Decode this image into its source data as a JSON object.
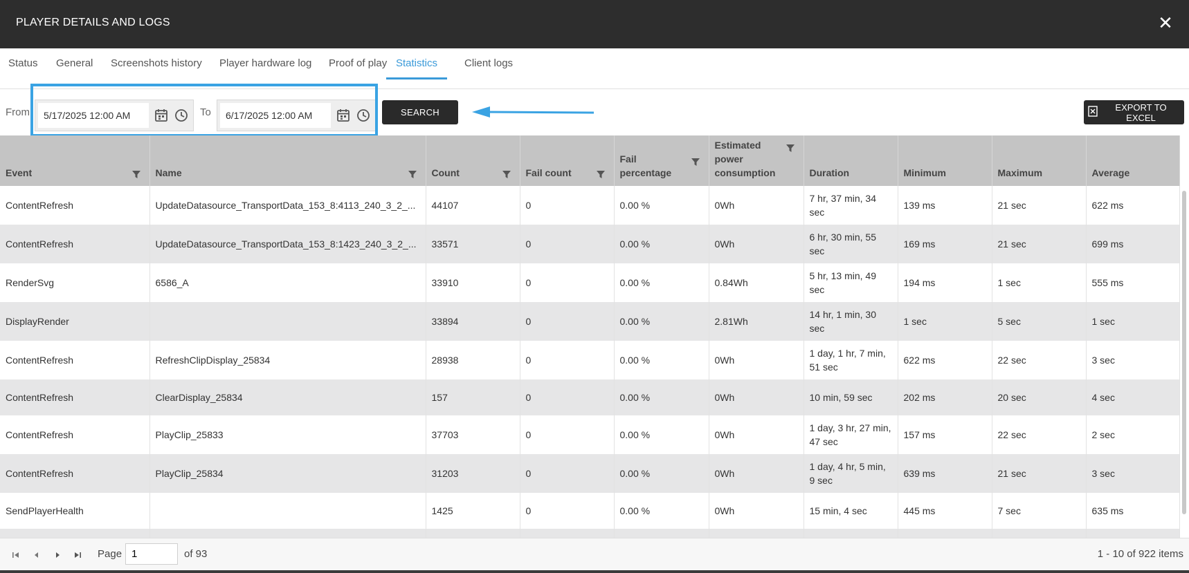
{
  "window": {
    "title": "PLAYER DETAILS AND LOGS",
    "close_icon": "close-icon"
  },
  "tabs": [
    {
      "label": "Status",
      "active": false
    },
    {
      "label": "General",
      "active": false
    },
    {
      "label": "Screenshots history",
      "active": false
    },
    {
      "label": "Player hardware log",
      "active": false
    },
    {
      "label": "Proof of play",
      "active": false
    },
    {
      "label": "Statistics",
      "active": true
    },
    {
      "label": "Client logs",
      "active": false
    }
  ],
  "filters": {
    "from_label": "From",
    "from_value": "5/17/2025 12:00 AM",
    "to_label": "To",
    "to_value": "6/17/2025 12:00 AM",
    "search_label": "SEARCH",
    "export_label": "EXPORT TO EXCEL"
  },
  "colors": {
    "accent": "#3a9ad9",
    "highlight": "#3aa3e3",
    "titlebar": "#2d2d2d",
    "header": "#c4c4c4"
  },
  "table": {
    "columns": [
      {
        "label": "Event",
        "filter": true
      },
      {
        "label": "Name",
        "filter": true
      },
      {
        "label": "Count",
        "filter": true
      },
      {
        "label": "Fail count",
        "filter": true
      },
      {
        "label": "Fail percentage",
        "filter": true
      },
      {
        "label": "Estimated power consumption",
        "filter": true
      },
      {
        "label": "Duration",
        "filter": false
      },
      {
        "label": "Minimum",
        "filter": false
      },
      {
        "label": "Maximum",
        "filter": false
      },
      {
        "label": "Average",
        "filter": false
      }
    ],
    "rows": [
      [
        "ContentRefresh",
        "UpdateDatasource_TransportData_153_8:4113_240_3_2_...",
        "44107",
        "0",
        "0.00 %",
        "0Wh",
        "7 hr, 37 min, 34 sec",
        "139 ms",
        "21 sec",
        "622 ms"
      ],
      [
        "ContentRefresh",
        "UpdateDatasource_TransportData_153_8:1423_240_3_2_...",
        "33571",
        "0",
        "0.00 %",
        "0Wh",
        "6 hr, 30 min, 55 sec",
        "169 ms",
        "21 sec",
        "699 ms"
      ],
      [
        "RenderSvg",
        "6586_A",
        "33910",
        "0",
        "0.00 %",
        "0.84Wh",
        "5 hr, 13 min, 49 sec",
        "194 ms",
        "1 sec",
        "555 ms"
      ],
      [
        "DisplayRender",
        "",
        "33894",
        "0",
        "0.00 %",
        "2.81Wh",
        "14 hr, 1 min, 30 sec",
        "1 sec",
        "5 sec",
        "1 sec"
      ],
      [
        "ContentRefresh",
        "RefreshClipDisplay_25834",
        "28938",
        "0",
        "0.00 %",
        "0Wh",
        "1 day, 1 hr, 7 min, 51 sec",
        "622 ms",
        "22 sec",
        "3 sec"
      ],
      [
        "ContentRefresh",
        "ClearDisplay_25834",
        "157",
        "0",
        "0.00 %",
        "0Wh",
        "10 min, 59 sec",
        "202 ms",
        "20 sec",
        "4 sec"
      ],
      [
        "ContentRefresh",
        "PlayClip_25833",
        "37703",
        "0",
        "0.00 %",
        "0Wh",
        "1 day, 3 hr, 27 min, 47 sec",
        "157 ms",
        "22 sec",
        "2 sec"
      ],
      [
        "ContentRefresh",
        "PlayClip_25834",
        "31203",
        "0",
        "0.00 %",
        "0Wh",
        "1 day, 4 hr, 5 min, 9 sec",
        "639 ms",
        "21 sec",
        "3 sec"
      ],
      [
        "SendPlayerHealth",
        "",
        "1425",
        "0",
        "0.00 %",
        "0Wh",
        "15 min, 4 sec",
        "445 ms",
        "7 sec",
        "635 ms"
      ],
      [
        "",
        "",
        "",
        "",
        "",
        "",
        "",
        "",
        "",
        ""
      ]
    ]
  },
  "pager": {
    "page_label": "Page",
    "page_value": "1",
    "of_label": "of 93",
    "items_label": "1 - 10 of 922 items"
  }
}
